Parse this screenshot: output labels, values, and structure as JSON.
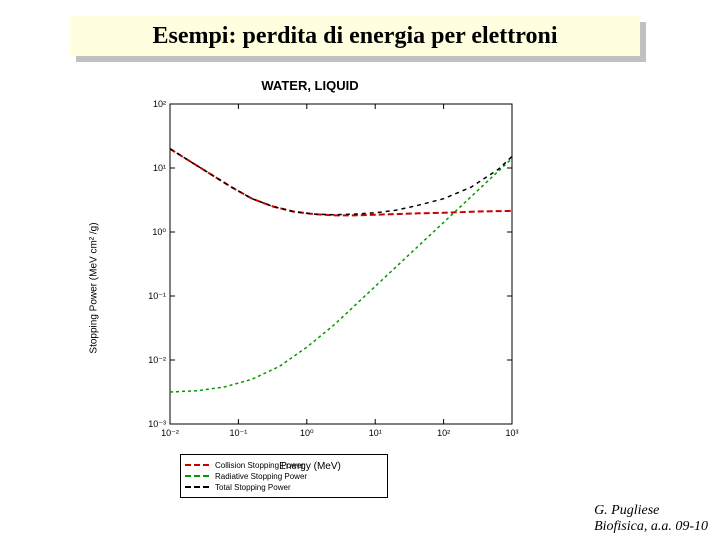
{
  "title": "Esempi: perdita di energia per elettroni",
  "footer": {
    "line1": "G. Pugliese",
    "line2": "Biofisica, a.a. 09-10"
  },
  "chart": {
    "type": "line",
    "title": "WATER, LIQUID",
    "xlabel": "Energy (MeV)",
    "ylabel": "Stopping Power (MeV cm² /g)",
    "xlog": true,
    "ylog": true,
    "xticks": [
      -2,
      -1,
      0,
      1,
      2,
      3
    ],
    "xtick_labels": [
      "10⁻²",
      "10⁻¹",
      "10⁰",
      "10¹",
      "10²",
      "10³"
    ],
    "yticks": [
      -3,
      -2,
      -1,
      0,
      1,
      2
    ],
    "ytick_labels": [
      "10⁻³",
      "10⁻²",
      "10⁻¹",
      "10⁰",
      "10¹",
      "10²"
    ],
    "xlim": [
      -2,
      3
    ],
    "ylim": [
      -3,
      2
    ],
    "background_color": "#ffffff",
    "axis_color": "#000000",
    "series": [
      {
        "name": "Collision Stopping Power",
        "color": "#cc0000",
        "dash": "6,3",
        "width": 2,
        "points": [
          [
            -2.0,
            1.3
          ],
          [
            -1.7,
            1.1
          ],
          [
            -1.4,
            0.9
          ],
          [
            -1.1,
            0.7
          ],
          [
            -0.8,
            0.52
          ],
          [
            -0.5,
            0.4
          ],
          [
            -0.2,
            0.32
          ],
          [
            0.1,
            0.28
          ],
          [
            0.4,
            0.26
          ],
          [
            0.7,
            0.26
          ],
          [
            1.0,
            0.27
          ],
          [
            1.3,
            0.28
          ],
          [
            1.6,
            0.29
          ],
          [
            2.0,
            0.3
          ],
          [
            2.5,
            0.32
          ],
          [
            3.0,
            0.33
          ]
        ]
      },
      {
        "name": "Radiative Stopping Power",
        "color": "#009900",
        "dash": "3,3",
        "width": 1.5,
        "points": [
          [
            -2.0,
            -2.5
          ],
          [
            -1.6,
            -2.48
          ],
          [
            -1.2,
            -2.42
          ],
          [
            -0.8,
            -2.3
          ],
          [
            -0.4,
            -2.1
          ],
          [
            0.0,
            -1.8
          ],
          [
            0.4,
            -1.45
          ],
          [
            0.8,
            -1.05
          ],
          [
            1.2,
            -0.65
          ],
          [
            1.6,
            -0.25
          ],
          [
            2.0,
            0.15
          ],
          [
            2.4,
            0.55
          ],
          [
            2.8,
            0.95
          ],
          [
            3.0,
            1.15
          ]
        ]
      },
      {
        "name": "Total Stopping Power",
        "color": "#000000",
        "dash": "4,4",
        "width": 1.5,
        "points": [
          [
            -2.0,
            1.3
          ],
          [
            -1.7,
            1.1
          ],
          [
            -1.4,
            0.9
          ],
          [
            -1.1,
            0.7
          ],
          [
            -0.8,
            0.52
          ],
          [
            -0.5,
            0.4
          ],
          [
            -0.2,
            0.32
          ],
          [
            0.1,
            0.28
          ],
          [
            0.4,
            0.27
          ],
          [
            0.7,
            0.28
          ],
          [
            1.0,
            0.3
          ],
          [
            1.3,
            0.34
          ],
          [
            1.6,
            0.41
          ],
          [
            2.0,
            0.52
          ],
          [
            2.4,
            0.7
          ],
          [
            2.8,
            0.98
          ],
          [
            3.0,
            1.18
          ]
        ]
      }
    ],
    "legend": {
      "items": [
        {
          "label": "Collision Stopping Power",
          "color": "#cc0000",
          "dash": "dashed"
        },
        {
          "label": "Radiative Stopping Power",
          "color": "#009900",
          "dash": "dashed"
        },
        {
          "label": "Total Stopping Power",
          "color": "#000000",
          "dash": "dashed"
        }
      ]
    }
  }
}
